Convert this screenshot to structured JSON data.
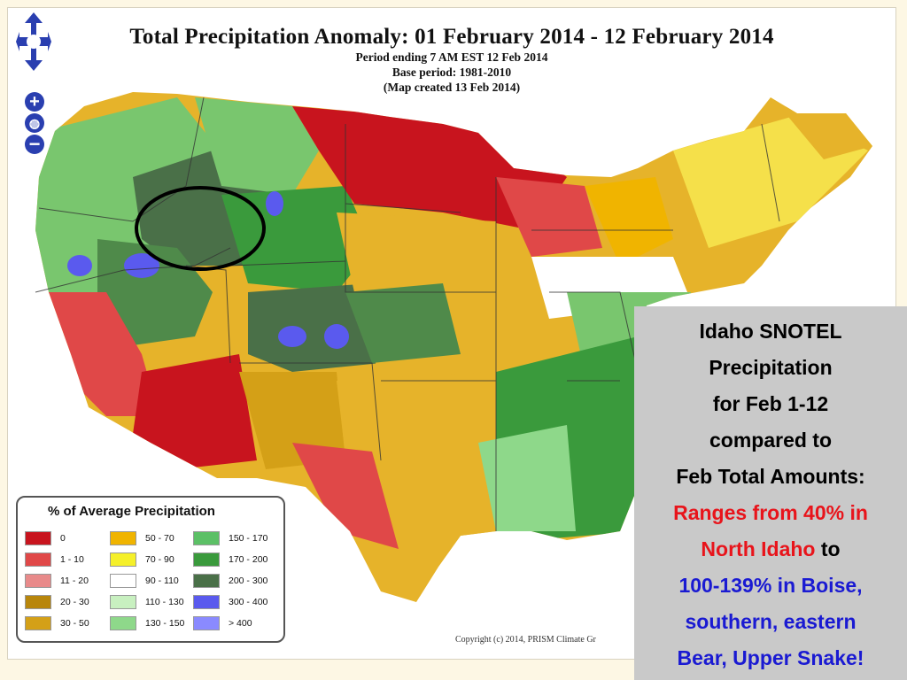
{
  "map": {
    "title": "Total Precipitation Anomaly: 01 February 2014 - 12 February 2014",
    "subtitle_lines": [
      "Period ending 7 AM EST 12 Feb 2014",
      "Base period: 1981-2010",
      "(Map created 13 Feb 2014)"
    ],
    "copyright": "Copyright (c) 2014, PRISM Climate Gr",
    "highlight": "Idaho circled"
  },
  "nav": {
    "zoom_in": "+",
    "zoom_out": "−",
    "globe": "◍"
  },
  "legend": {
    "title": "% of Average Precipitation",
    "items": [
      {
        "label": "0",
        "color": "#c8141e"
      },
      {
        "label": "1 - 10",
        "color": "#e04848"
      },
      {
        "label": "11 - 20",
        "color": "#e88a8a"
      },
      {
        "label": "20 - 30",
        "color": "#b8860b"
      },
      {
        "label": "30 - 50",
        "color": "#d4a017"
      },
      {
        "label": "50 - 70",
        "color": "#f0b400"
      },
      {
        "label": "70 - 90",
        "color": "#f5f02a"
      },
      {
        "label": "90 - 110",
        "color": "#ffffff"
      },
      {
        "label": "110 - 130",
        "color": "#c8f0c0"
      },
      {
        "label": "130 - 150",
        "color": "#8ed88a"
      },
      {
        "label": "150 - 170",
        "color": "#5cc066"
      },
      {
        "label": "170 - 200",
        "color": "#3a9a3c"
      },
      {
        "label": "200 - 300",
        "color": "#4a7048"
      },
      {
        "label": "300 - 400",
        "color": "#5a5aee"
      },
      {
        "label": "> 400",
        "color": "#8a8aff"
      }
    ]
  },
  "callout": {
    "line1": "Idaho SNOTEL",
    "line2": "Precipitation",
    "line3": "for Feb 1-12",
    "line4": "compared to",
    "line5": "Feb Total Amounts:",
    "red1": "Ranges from 40% in",
    "red2": "North Idaho",
    "to": " to",
    "blue1": "100-139% in Boise,",
    "blue2": "southern, eastern",
    "blue3": "Bear, Upper Snake!"
  }
}
